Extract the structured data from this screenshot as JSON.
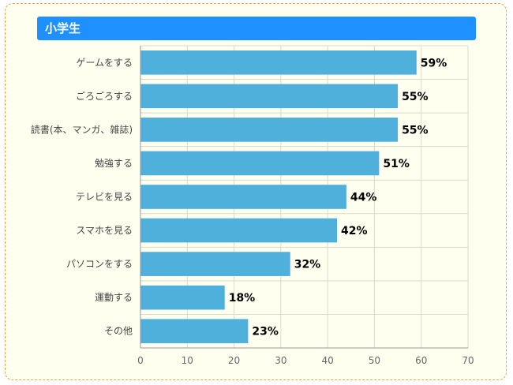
{
  "title": "小学生",
  "chart_data": {
    "type": "bar",
    "orientation": "horizontal",
    "title": "小学生",
    "categories": [
      "ゲームをする",
      "ごろごろする",
      "読書(本、マンガ、雑誌)",
      "勉強する",
      "テレビを見る",
      "スマホを見る",
      "パソコンをする",
      "運動する",
      "その他"
    ],
    "values": [
      59,
      55,
      55,
      51,
      44,
      42,
      32,
      18,
      23
    ],
    "value_labels": [
      "59%",
      "55%",
      "55%",
      "51%",
      "44%",
      "42%",
      "32%",
      "18%",
      "23%"
    ],
    "xlim": [
      0,
      70
    ],
    "xticks": [
      0,
      10,
      20,
      30,
      40,
      50,
      60,
      70
    ],
    "xlabel": "",
    "ylabel": "",
    "grid": true,
    "bar_color": "#4fb0dc",
    "grid_color": "#d8dcc8"
  }
}
